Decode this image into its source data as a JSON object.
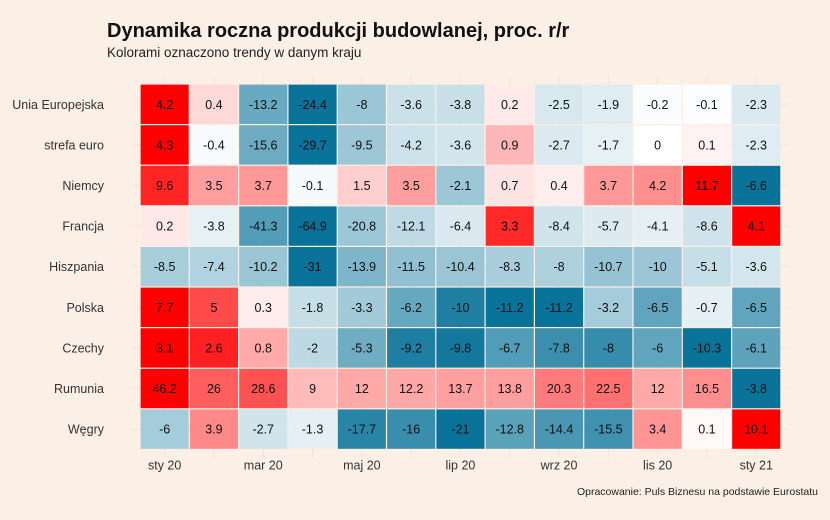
{
  "chart_data": {
    "type": "heatmap",
    "title": "Dynamika roczna produkcji budowlanej, proc. r/r",
    "subtitle": "Kolorami oznaczono trendy w danym kraju",
    "caption": "Opracowanie: Puls Biznesu na podstawie Eurostatu",
    "rows": [
      "Unia Europejska",
      "strefa euro",
      "Niemcy",
      "Francja",
      "Hiszpania",
      "Polska",
      "Czechy",
      "Rumunia",
      "Węgry"
    ],
    "x_tick_labels": [
      "sty 20",
      "mar 20",
      "maj 20",
      "lip 20",
      "wrz 20",
      "lis 20",
      "sty 21"
    ],
    "x_tick_columns": [
      0,
      2,
      4,
      6,
      8,
      10,
      12
    ],
    "column_count": 13,
    "values": [
      [
        4.2,
        0.4,
        -13.2,
        -24.4,
        -8,
        -3.6,
        -3.8,
        0.2,
        -2.5,
        -1.9,
        -0.2,
        -0.1,
        -2.3
      ],
      [
        4.3,
        -0.4,
        -15.6,
        -29.7,
        -9.5,
        -4.2,
        -3.6,
        0.9,
        -2.7,
        -1.7,
        0,
        0.1,
        -2.3
      ],
      [
        9.6,
        3.5,
        3.7,
        -0.1,
        1.5,
        3.5,
        -2.1,
        0.7,
        0.4,
        3.7,
        4.2,
        11.7,
        -6.6
      ],
      [
        0.2,
        -3.8,
        -41.3,
        -64.9,
        -20.8,
        -12.1,
        -6.4,
        3.3,
        -8.4,
        -5.7,
        -4.1,
        -8.6,
        4.1
      ],
      [
        -8.5,
        -7.4,
        -10.2,
        -31,
        -13.9,
        -11.5,
        -10.4,
        -8.3,
        -8,
        -10.7,
        -10,
        -5.1,
        -3.6
      ],
      [
        7.7,
        5,
        0.3,
        -1.8,
        -3.3,
        -6.2,
        -10,
        -11.2,
        -11.2,
        -3.2,
        -6.5,
        -0.7,
        -6.5
      ],
      [
        3.1,
        2.6,
        0.8,
        -2,
        -5.3,
        -9.2,
        -9.8,
        -6.7,
        -7.8,
        -8,
        -6,
        -10.3,
        -6.1
      ],
      [
        46.2,
        26,
        28.6,
        9,
        12,
        12.2,
        13.7,
        13.8,
        20.3,
        22.5,
        12,
        16.5,
        -3.8
      ],
      [
        -6,
        3.9,
        -2.7,
        -1.3,
        -17.7,
        -16,
        -21,
        -12.8,
        -14.4,
        -15.5,
        3.4,
        0.1,
        10.1
      ]
    ],
    "colors": {
      "negative": "#0a7399",
      "positive": "#ff0000",
      "neutral": "#ffffff"
    },
    "grid": true,
    "legend": "none"
  }
}
